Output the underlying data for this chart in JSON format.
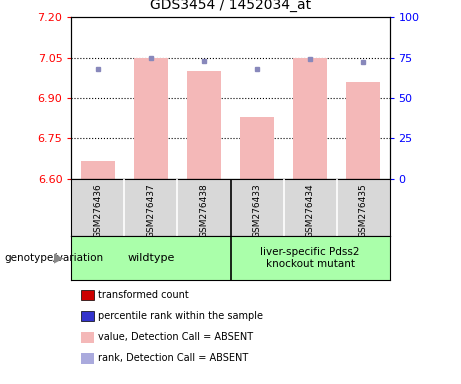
{
  "title": "GDS3454 / 1452034_at",
  "samples": [
    "GSM276436",
    "GSM276437",
    "GSM276438",
    "GSM276433",
    "GSM276434",
    "GSM276435"
  ],
  "bar_values": [
    6.665,
    7.05,
    7.0,
    6.83,
    7.05,
    6.96
  ],
  "rank_values": [
    68,
    75,
    73,
    68,
    74,
    72
  ],
  "ylim_left": [
    6.6,
    7.2
  ],
  "ylim_right": [
    0,
    100
  ],
  "yticks_left": [
    6.6,
    6.75,
    6.9,
    7.05,
    7.2
  ],
  "yticks_right": [
    0,
    25,
    50,
    75,
    100
  ],
  "bar_color": "#f4b8b8",
  "rank_marker_color": "#8888bb",
  "wildtype_color": "#aaffaa",
  "knockout_color": "#aaffaa",
  "wildtype_label": "wildtype",
  "knockout_label": "liver-specific Pdss2\nknockout mutant",
  "genotype_label": "genotype/variation",
  "legend_items": [
    {
      "label": "transformed count",
      "color": "#cc0000"
    },
    {
      "label": "percentile rank within the sample",
      "color": "#3333cc"
    },
    {
      "label": "value, Detection Call = ABSENT",
      "color": "#f4b8b8"
    },
    {
      "label": "rank, Detection Call = ABSENT",
      "color": "#aaaadd"
    }
  ],
  "hlines": [
    7.05,
    6.9,
    6.75
  ],
  "bar_width": 0.65,
  "x_positions": [
    0,
    1,
    2,
    3,
    4,
    5
  ],
  "cell_bg": "#d8d8d8"
}
